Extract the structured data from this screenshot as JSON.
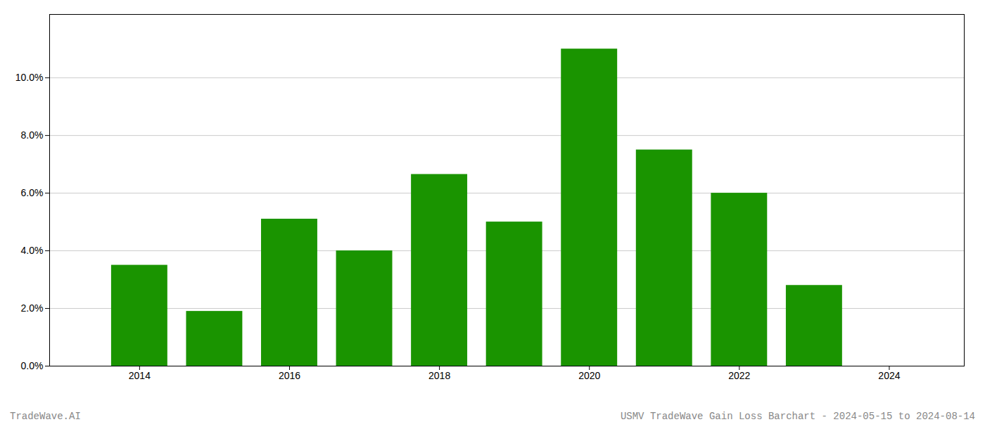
{
  "chart_data": {
    "type": "bar",
    "x": [
      2014,
      2015,
      2016,
      2017,
      2018,
      2019,
      2020,
      2021,
      2022,
      2023
    ],
    "values": [
      0.035,
      0.019,
      0.051,
      0.04,
      0.0665,
      0.05,
      0.11,
      0.075,
      0.06,
      0.028
    ],
    "color": "#1a9400",
    "xlim": [
      2012.8,
      2025.0
    ],
    "xticks": [
      2014,
      2016,
      2018,
      2020,
      2022,
      2024
    ],
    "ylim": [
      0,
      0.122
    ],
    "yticks": [
      {
        "value": 0.0,
        "label": "0.0%"
      },
      {
        "value": 0.02,
        "label": "2.0%"
      },
      {
        "value": 0.04,
        "label": "4.0%"
      },
      {
        "value": 0.06,
        "label": "6.0%"
      },
      {
        "value": 0.08,
        "label": "8.0%"
      },
      {
        "value": 0.1,
        "label": "10.0%"
      }
    ],
    "grid": "y",
    "annotations": [
      "TradeWave.AI",
      "USMV TradeWave Gain Loss Barchart - 2024-05-15 to 2024-08-14"
    ]
  }
}
